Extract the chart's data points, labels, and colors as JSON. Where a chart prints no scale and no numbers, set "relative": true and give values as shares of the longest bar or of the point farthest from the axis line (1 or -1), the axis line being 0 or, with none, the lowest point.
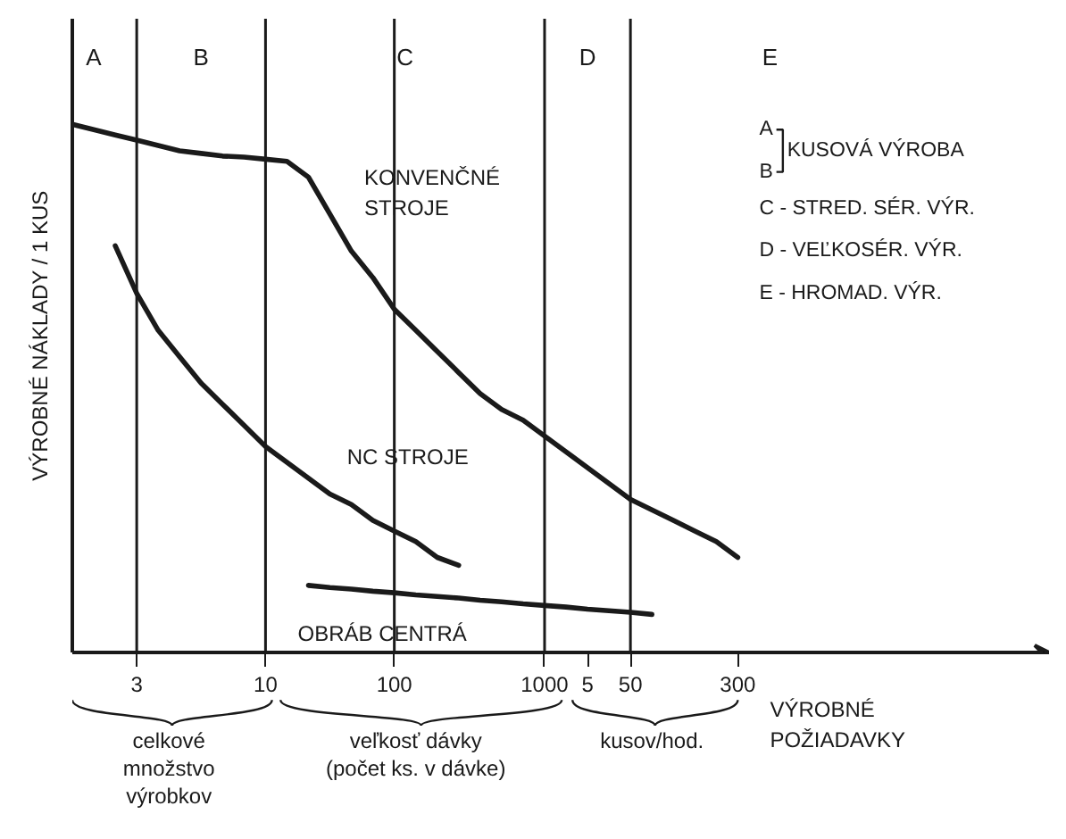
{
  "chart_data": {
    "type": "line",
    "relative": true,
    "ylabel": "VÝROBNÉ NÁKLADY / 1 KUS",
    "xlabel": "VÝROBNÉ POŽIADAVKY",
    "categories": [
      null,
      null,
      null,
      "3",
      null,
      null,
      null,
      null,
      null,
      "10",
      null,
      null,
      null,
      null,
      null,
      "100",
      null,
      null,
      null,
      null,
      null,
      null,
      "1000",
      null,
      "5",
      null,
      "50",
      null,
      null,
      null,
      null,
      "300",
      null,
      null,
      null,
      null,
      null,
      null,
      null,
      null,
      null,
      null,
      null,
      null,
      null,
      null
    ],
    "series": [
      {
        "name": "KONVENČNÉ STROJE",
        "color": "#1a1a1a",
        "values": [
          1.0,
          0.99,
          0.98,
          0.97,
          0.96,
          0.95,
          0.945,
          0.94,
          0.938,
          0.934,
          0.93,
          0.9,
          0.83,
          0.76,
          0.71,
          0.65,
          0.61,
          0.57,
          0.53,
          0.49,
          0.46,
          0.44,
          0.41,
          0.38,
          0.35,
          0.32,
          0.29,
          0.27,
          0.25,
          0.23,
          0.21,
          0.18,
          null,
          null,
          null,
          null,
          null,
          null,
          null,
          null,
          null,
          null,
          null,
          null,
          null,
          null
        ]
      },
      {
        "name": "NC STROJE",
        "color": "#1a1a1a",
        "values": [
          null,
          null,
          0.77,
          0.68,
          0.61,
          0.56,
          0.51,
          0.47,
          0.43,
          0.39,
          0.36,
          0.33,
          0.3,
          0.28,
          0.25,
          0.23,
          0.21,
          0.18,
          0.165,
          null,
          null,
          null,
          null,
          null,
          null,
          null,
          null,
          null,
          null,
          null,
          null,
          null,
          null,
          null,
          null,
          null,
          null,
          null,
          null,
          null,
          null,
          null,
          null,
          null,
          null,
          null
        ]
      },
      {
        "name": "OBRÁB CENTRÁ",
        "color": "#1a1a1a",
        "values": [
          null,
          null,
          null,
          null,
          null,
          null,
          null,
          null,
          null,
          null,
          null,
          0.127,
          0.123,
          0.12,
          0.116,
          0.113,
          0.109,
          0.106,
          0.103,
          0.099,
          0.096,
          0.092,
          0.089,
          0.086,
          0.082,
          0.079,
          0.076,
          0.072,
          null,
          null,
          null,
          null,
          null,
          null,
          null,
          null,
          null,
          null,
          null,
          null,
          null,
          null,
          null,
          null,
          null,
          null
        ]
      }
    ],
    "ref_lines": [
      {
        "axis": "x",
        "value": "3"
      },
      {
        "axis": "x",
        "value": "10"
      },
      {
        "axis": "x",
        "value": "100"
      },
      {
        "axis": "x",
        "value": "1000"
      },
      {
        "axis": "x",
        "value": "50"
      }
    ],
    "annotations": [
      "A",
      "B",
      "C",
      "D",
      "E",
      "A",
      "B",
      "KUSOVÁ VÝROBA",
      "C - STRED. SÉR. VÝR.",
      "D - VEĽKOSÉR. VÝR.",
      "E - HROMAD. VÝR.",
      "celkové množstvo výrobkov",
      "veľkosť dávky (počet ks. v dávke)",
      "kusov/hod."
    ],
    "grid": false
  }
}
